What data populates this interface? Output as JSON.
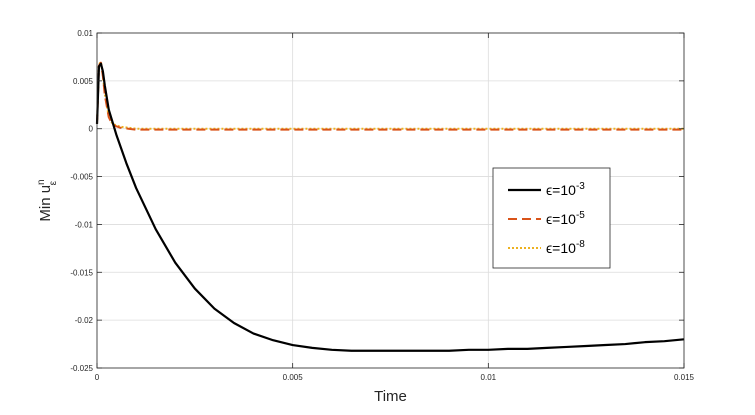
{
  "chart_data": {
    "type": "line",
    "title": "",
    "xlabel": "Time",
    "ylabel": {
      "base": "Min u",
      "sub": "ε",
      "sup": "n"
    },
    "xlim": [
      0,
      0.015
    ],
    "ylim": [
      -0.025,
      0.01
    ],
    "xticks": [
      0,
      0.005,
      0.01,
      0.015
    ],
    "xtick_labels": [
      "0",
      "0.005",
      "0.01",
      "0.015"
    ],
    "yticks": [
      0.01,
      0.005,
      0,
      -0.005,
      -0.01,
      -0.015,
      -0.02,
      -0.025
    ],
    "ytick_labels": [
      "0.01",
      "0.005",
      "0",
      "-0.005",
      "-0.01",
      "-0.015",
      "-0.02",
      "-0.025"
    ],
    "grid": true,
    "legend_position": "right",
    "series": [
      {
        "name": {
          "prefix": "ϵ=10",
          "exp": "-3"
        },
        "color": "#000000",
        "style": "solid",
        "x": [
          0,
          5e-05,
          0.0001,
          0.00015,
          0.0002,
          0.0003,
          0.0005,
          0.00075,
          0.001,
          0.0015,
          0.002,
          0.0025,
          0.003,
          0.0035,
          0.004,
          0.0045,
          0.005,
          0.0055,
          0.006,
          0.0065,
          0.007,
          0.0075,
          0.008,
          0.0085,
          0.009,
          0.0095,
          0.01,
          0.0105,
          0.011,
          0.0115,
          0.012,
          0.0125,
          0.013,
          0.0135,
          0.014,
          0.0145,
          0.015
        ],
        "values": [
          0.0005,
          0.0065,
          0.0068,
          0.006,
          0.0045,
          0.002,
          -0.0007,
          -0.0036,
          -0.0062,
          -0.0105,
          -0.014,
          -0.0167,
          -0.0188,
          -0.0203,
          -0.0214,
          -0.0221,
          -0.0226,
          -0.0229,
          -0.0231,
          -0.0232,
          -0.0232,
          -0.0232,
          -0.0232,
          -0.0232,
          -0.0232,
          -0.0231,
          -0.0231,
          -0.023,
          -0.023,
          -0.0229,
          -0.0228,
          -0.0227,
          -0.0226,
          -0.0225,
          -0.0223,
          -0.0222,
          -0.022
        ]
      },
      {
        "name": {
          "prefix": "ϵ=10",
          "exp": "-5"
        },
        "color": "#D95319",
        "style": "dashed",
        "x": [
          0,
          5e-05,
          0.0001,
          0.00015,
          0.0002,
          0.0003,
          0.0004,
          0.0006,
          0.0008,
          0.001,
          0.0015,
          0.002,
          0.005,
          0.01,
          0.015
        ],
        "values": [
          0.0005,
          0.0066,
          0.0069,
          0.0055,
          0.0035,
          0.0012,
          0.0004,
          0.0001,
          0.0,
          -0.0001,
          -0.0001,
          -0.0001,
          -0.0001,
          -0.0001,
          -0.0001
        ]
      },
      {
        "name": {
          "prefix": "ϵ=10",
          "exp": "-8"
        },
        "color": "#EDB120",
        "style": "dotted",
        "x": [
          0,
          5e-05,
          0.0001,
          0.00015,
          0.0002,
          0.0003,
          0.0004,
          0.0006,
          0.0008,
          0.001,
          0.0015,
          0.002,
          0.005,
          0.01,
          0.015
        ],
        "values": [
          0.0005,
          0.0067,
          0.007,
          0.0056,
          0.0036,
          0.0013,
          0.0005,
          0.0002,
          0.0001,
          0.0,
          0.0,
          0.0,
          0.0,
          0.0,
          0.0
        ]
      }
    ]
  }
}
